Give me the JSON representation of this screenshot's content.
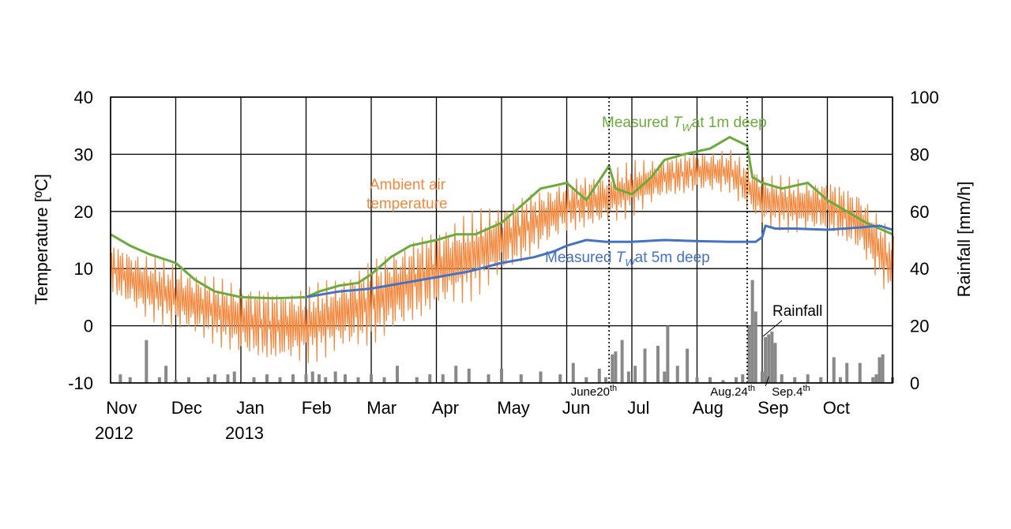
{
  "chart_data": {
    "type": "line",
    "title": "",
    "ylabel": "Temperature [ºC]",
    "y2label": "Rainfall [mm/h]",
    "ylim": [
      -10,
      40
    ],
    "y2lim": [
      0,
      100
    ],
    "yticks": [
      "40",
      "30",
      "20",
      "10",
      "0",
      "-10"
    ],
    "y2ticks": [
      "100",
      "80",
      "60",
      "40",
      "20",
      "0"
    ],
    "x_range_months": [
      0,
      12
    ],
    "month_labels": [
      "Nov",
      "Dec",
      "Jan",
      "Feb",
      "Mar",
      "Apr",
      "May",
      "Jun",
      "Jul",
      "Aug",
      "Sep",
      "Oct"
    ],
    "year_labels": [
      {
        "month_index": 0,
        "label": "2012"
      },
      {
        "month_index": 2,
        "label": "2013"
      }
    ],
    "grid": true,
    "colors": {
      "ambient": "#f4883e",
      "tw1m": "#6aab3c",
      "tw5m": "#4472c4",
      "rainfall": "#888888"
    },
    "annotations": {
      "ambient_line1": "Ambient air",
      "ambient_line2": "temperature",
      "tw1_prefix": "Measured ",
      "tw1_T": "T",
      "tw1_sub": "W",
      "tw1_suffix": "at 1m deep",
      "tw5_prefix": "Measured ",
      "tw5_T": "T",
      "tw5_sub": "W",
      "tw5_suffix": "at 5m deep",
      "rainfall": "Rainfall",
      "events": [
        {
          "month": 7.65,
          "label": "June20",
          "sup": "th",
          "anchor": "end"
        },
        {
          "month": 9.77,
          "label": "Aug.24",
          "sup": "th",
          "anchor": "end"
        },
        {
          "month": 10.1,
          "label": "Sep.4",
          "sup": "th",
          "anchor": "start"
        }
      ]
    },
    "series": [
      {
        "name": "Measured Tw at 1m deep",
        "x": [
          0,
          0.3,
          0.6,
          1.0,
          1.3,
          1.6,
          2.0,
          2.5,
          3.0,
          3.2,
          3.5,
          3.8,
          4.0,
          4.3,
          4.6,
          5.0,
          5.3,
          5.6,
          6.0,
          6.3,
          6.6,
          7.0,
          7.3,
          7.65,
          7.75,
          8.0,
          8.3,
          8.5,
          8.8,
          9.2,
          9.5,
          9.77,
          9.85,
          10.0,
          10.3,
          10.7,
          11.0,
          11.3,
          11.6,
          12.0
        ],
        "values": [
          16,
          14,
          12.5,
          11,
          8,
          6,
          5,
          4.8,
          5,
          6,
          7,
          7.5,
          9,
          12,
          14,
          15,
          16,
          16,
          18,
          21,
          24,
          25,
          22,
          28,
          24,
          23,
          26,
          29,
          30,
          31,
          33,
          31.5,
          26,
          25,
          24,
          25,
          22,
          20,
          18,
          16
        ]
      },
      {
        "name": "Measured Tw at 5m deep",
        "x": [
          3.0,
          3.5,
          4.0,
          4.5,
          5.0,
          5.5,
          6.0,
          6.5,
          6.8,
          7.0,
          7.3,
          7.6,
          8.0,
          8.5,
          9.0,
          9.5,
          9.77,
          9.9,
          10.0,
          10.05,
          10.2,
          10.5,
          11.0,
          11.5,
          11.8,
          12.0
        ],
        "values": [
          5,
          6,
          6.5,
          7.5,
          8.5,
          9.5,
          11,
          12,
          13,
          14,
          15,
          14.7,
          14.7,
          15,
          14.8,
          14.7,
          14.7,
          14.7,
          15.5,
          17.5,
          17,
          17,
          16.8,
          17.2,
          17.5,
          16.8
        ]
      },
      {
        "name": "Ambient air temperature",
        "x": [
          0,
          0.5,
          1.0,
          1.5,
          2.0,
          2.5,
          3.0,
          3.5,
          4.0,
          4.5,
          5.0,
          5.5,
          6.0,
          6.5,
          7.0,
          7.5,
          8.0,
          8.5,
          9.0,
          9.5,
          10.0,
          10.5,
          11.0,
          11.5,
          12.0
        ],
        "values": [
          10,
          7,
          5,
          3,
          1,
          0,
          0,
          2,
          4,
          7,
          10,
          12,
          15,
          18,
          21,
          22,
          24,
          26,
          27,
          27,
          22,
          21,
          21,
          18,
          10
        ],
        "amplitude": [
          5,
          6,
          6,
          6,
          7,
          7,
          7,
          7,
          8,
          8,
          8,
          8,
          7,
          6,
          5,
          5,
          5,
          4,
          4,
          4,
          5,
          5,
          5,
          6,
          6
        ]
      },
      {
        "name": "Rainfall",
        "axis": "right",
        "x": [
          0.15,
          0.3,
          0.55,
          0.75,
          0.85,
          1.0,
          1.2,
          1.5,
          1.6,
          1.8,
          1.9,
          2.2,
          2.4,
          2.6,
          2.8,
          3.0,
          3.1,
          3.2,
          3.3,
          3.45,
          3.6,
          3.8,
          4.0,
          4.2,
          4.4,
          4.7,
          4.9,
          5.1,
          5.3,
          5.5,
          5.8,
          6.0,
          6.3,
          6.6,
          6.9,
          7.1,
          7.3,
          7.5,
          7.6,
          7.7,
          7.75,
          7.85,
          7.95,
          8.05,
          8.2,
          8.4,
          8.5,
          8.55,
          8.7,
          8.85,
          9.0,
          9.2,
          9.4,
          9.6,
          9.7,
          9.8,
          9.85,
          9.9,
          10.0,
          10.05,
          10.1,
          10.15,
          10.2,
          10.3,
          10.5,
          10.7,
          10.9,
          11.1,
          11.2,
          11.3,
          11.5,
          11.7,
          11.75,
          11.8,
          11.85,
          12.0
        ],
        "values": [
          3,
          2,
          15,
          2,
          6,
          1,
          2,
          2,
          3,
          3,
          4,
          2,
          3,
          2,
          3,
          3,
          4,
          3,
          2,
          4,
          3,
          2,
          3,
          2,
          6,
          2,
          3,
          3,
          6,
          5,
          3,
          5,
          3,
          4,
          3,
          7,
          2,
          5,
          2,
          10,
          11,
          15,
          4,
          6,
          12,
          13,
          4,
          20,
          6,
          12,
          2,
          2,
          1,
          2,
          3,
          20,
          36,
          25,
          4,
          16,
          17,
          18,
          14,
          3,
          2,
          3,
          2,
          9,
          2,
          7,
          7,
          2,
          3,
          9,
          10,
          2
        ]
      }
    ]
  }
}
